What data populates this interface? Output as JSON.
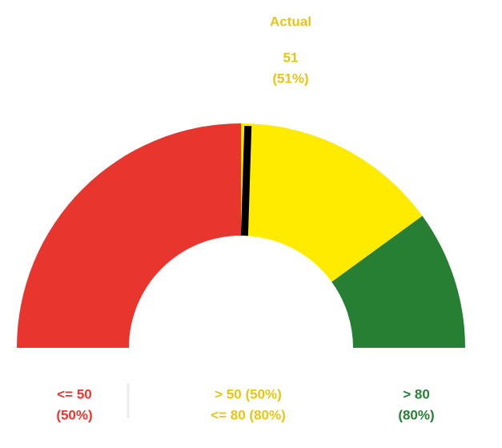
{
  "chart_data": {
    "type": "gauge",
    "title": "Actual",
    "values": [
      51
    ],
    "value_labels": [
      "(51%)"
    ],
    "value_color": "#e8c414",
    "needle_color": "#000000",
    "lim": [
      0,
      100
    ],
    "bands": [
      {
        "from": 0,
        "to": 50,
        "color": "#e8352e",
        "text_color": "#e8352e",
        "label_lines": [
          "<= 50",
          "(50%)"
        ]
      },
      {
        "from": 50,
        "to": 80,
        "color": "#ffeb00",
        "text_color": "#e8c414",
        "label_lines": [
          "> 50 (50%)",
          "<= 80 (80%)"
        ]
      },
      {
        "from": 80,
        "to": 100,
        "color": "#267f33",
        "text_color": "#267f33",
        "label_lines": [
          "> 80",
          "(80%)"
        ]
      }
    ]
  }
}
